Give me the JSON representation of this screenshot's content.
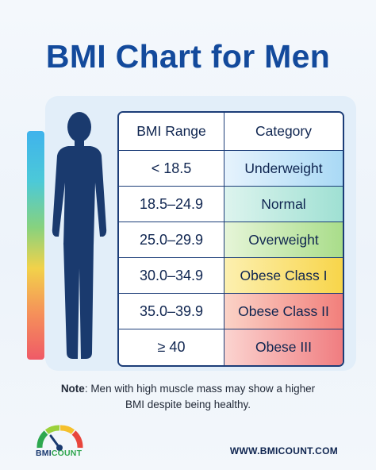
{
  "title": "BMI Chart for Men",
  "table": {
    "headers": [
      "BMI Range",
      "Category"
    ],
    "rows": [
      {
        "range": "< 18.5",
        "category": "Underweight"
      },
      {
        "range": "18.5–24.9",
        "category": "Normal"
      },
      {
        "range": "25.0–29.9",
        "category": "Overweight"
      },
      {
        "range": "30.0–34.9",
        "category": "Obese Class I"
      },
      {
        "range": "35.0–39.9",
        "category": "Obese Class II"
      },
      {
        "range": "≥ 40",
        "category": "Obese III"
      }
    ]
  },
  "note": {
    "label": "Note",
    "line1": ": Men with high muscle mass may show a higher",
    "line2": "BMI despite being healthy."
  },
  "logo": {
    "text_main": "BMI",
    "text_accent": "COUNT"
  },
  "website": "WWW.BMICOUNT.COM",
  "colors": {
    "title": "#134a9c",
    "underweight": "#a9d9f5",
    "normal": "#9fe0d3",
    "overweight": "#a9dd8a",
    "obese_1": "#f8d54a",
    "obese_2": "#f27f7b",
    "obese_3": "#f07d80"
  },
  "icons": [
    "male-silhouette-icon",
    "bmi-gauge-logo-icon"
  ]
}
